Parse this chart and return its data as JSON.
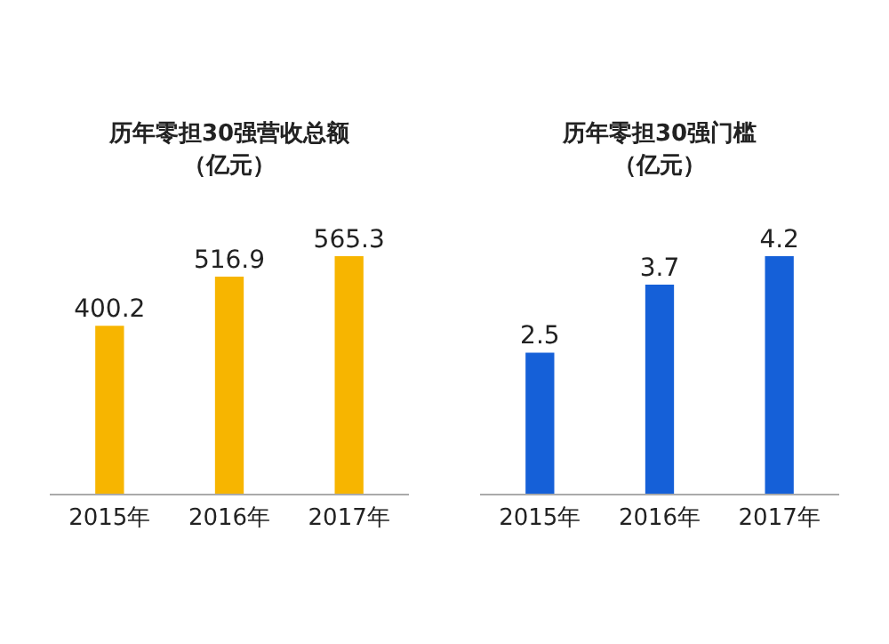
{
  "chart_data": [
    {
      "type": "bar",
      "title": "历年零担30强营收总额",
      "subtitle": "（亿元）",
      "categories": [
        "2015年",
        "2016年",
        "2017年"
      ],
      "values": [
        400.2,
        516.9,
        565.3
      ],
      "color": "#f7b500",
      "data_labels": true,
      "grid": false,
      "legend": false
    },
    {
      "type": "bar",
      "title": "历年零担30强门槛",
      "subtitle": "（亿元）",
      "categories": [
        "2015年",
        "2016年",
        "2017年"
      ],
      "values": [
        2.5,
        3.7,
        4.2
      ],
      "color": "#1560d8",
      "data_labels": true,
      "grid": false,
      "legend": false
    }
  ]
}
